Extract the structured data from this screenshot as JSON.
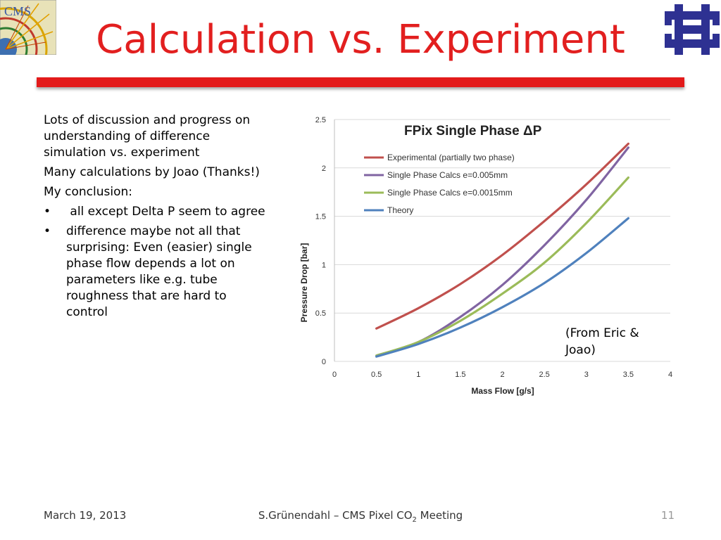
{
  "slide": {
    "title": "Calculation vs. Experiment",
    "bullets": [
      "Lots of discussion and progress on understanding of difference simulation vs. experiment",
      "Many calculations by Joao (Thanks!)",
      "My conclusion:"
    ],
    "sub_bullets": [
      " all except Delta P seem to agree",
      "difference maybe not all that surprising: Even (easier) single phase flow depends a lot on parameters like e.g. tube roughness that are hard to control"
    ],
    "bullet_char": "•",
    "note": "(From Eric & Joao)",
    "footer": {
      "date": "March 19, 2013",
      "center_prefix": "S.Grünendahl – CMS Pixel CO",
      "center_sub": "2",
      "center_suffix": " Meeting",
      "page": "11"
    },
    "colors": {
      "title": "#e21f1f",
      "rule": "#e31b1b",
      "fermilab": "#2e3192"
    }
  },
  "chart_data": {
    "type": "line",
    "title": "FPix Single Phase ΔP",
    "xlabel": "Mass Flow [g/s]",
    "ylabel": "Pressure Drop [bar]",
    "xlim": [
      0,
      4
    ],
    "ylim": [
      0,
      2.5
    ],
    "xticks": [
      "0",
      "0.5",
      "1",
      "1.5",
      "2",
      "2.5",
      "3",
      "3.5",
      "4"
    ],
    "yticks": [
      "0",
      "0.5",
      "1",
      "1.5",
      "2",
      "2.5"
    ],
    "grid": "horizontal",
    "legend_position": "top-left",
    "x": [
      0.5,
      1.0,
      1.5,
      2.0,
      2.5,
      3.0,
      3.5
    ],
    "series": [
      {
        "name": "Experimental (partially two phase)",
        "color": "#c0504d",
        "values": [
          0.34,
          0.55,
          0.8,
          1.1,
          1.45,
          1.83,
          2.25
        ]
      },
      {
        "name": "Single Phase Calcs e=0.005mm",
        "color": "#8064a2",
        "values": [
          0.06,
          0.2,
          0.46,
          0.79,
          1.2,
          1.67,
          2.21
        ]
      },
      {
        "name": "Single Phase Calcs e=0.0015mm",
        "color": "#9bbb59",
        "values": [
          0.06,
          0.2,
          0.42,
          0.7,
          1.02,
          1.43,
          1.9
        ]
      },
      {
        "name": "Theory",
        "color": "#4f81bd",
        "values": [
          0.05,
          0.18,
          0.35,
          0.56,
          0.81,
          1.12,
          1.48
        ]
      }
    ]
  }
}
